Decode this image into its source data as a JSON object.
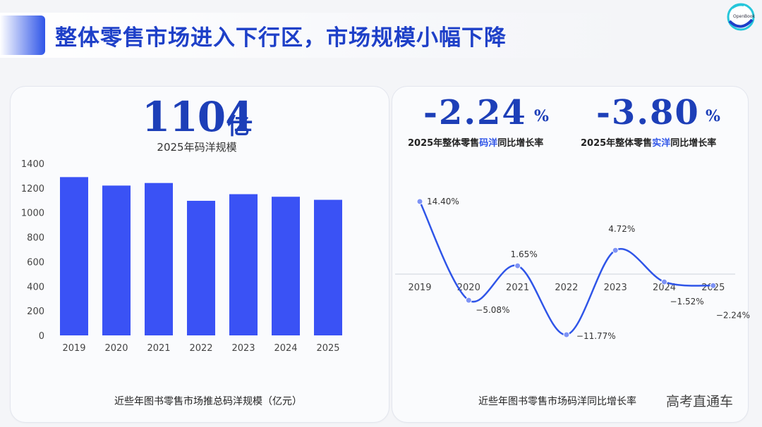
{
  "header": {
    "title": "整体零售市场进入下行区，市场规模小幅下降",
    "logo_text": "OpenBook"
  },
  "left_panel": {
    "headline_value": "1104",
    "headline_unit": "亿",
    "headline_caption": "2025年码洋规模",
    "footer_caption": "近些年图书零售市场推总码洋规模（亿元）"
  },
  "right_panel": {
    "market_rate": {
      "value": "-2.24",
      "unit": "%",
      "caption_pre": "2025年整体零售",
      "caption_hl": "码洋",
      "caption_post": "同比增长率"
    },
    "real_rate": {
      "value": "-3.80",
      "unit": "%",
      "caption_pre": "2025年整体零售",
      "caption_hl": "实洋",
      "caption_post": "同比增长率"
    },
    "footer_caption": "近些年图书零售市场码洋同比增长率"
  },
  "watermark": "高考直通车",
  "colors": {
    "accent": "#2f55e8",
    "bar": "#3a52f5",
    "headline": "#1d3fb8"
  },
  "chart_data": [
    {
      "type": "bar",
      "categories": [
        "2019",
        "2020",
        "2021",
        "2022",
        "2023",
        "2024",
        "2025"
      ],
      "values": [
        1289,
        1220,
        1241,
        1096,
        1150,
        1129,
        1104
      ],
      "title": "",
      "xlabel": "",
      "ylabel": "",
      "ylim": [
        0,
        1400
      ],
      "yticks": [
        "0",
        "200",
        "400",
        "600",
        "800",
        "1000",
        "1200",
        "1400"
      ],
      "grid": false
    },
    {
      "type": "line",
      "categories": [
        "2019",
        "2020",
        "2021",
        "2022",
        "2023",
        "2024",
        "2025"
      ],
      "values": [
        14.4,
        -5.08,
        1.65,
        -11.77,
        4.72,
        -1.52,
        -2.24
      ],
      "labels": [
        "14.40%",
        "−5.08%",
        "1.65%",
        "−11.77%",
        "4.72%",
        "−1.52%",
        "−2.24%"
      ],
      "title": "",
      "ylim": [
        -11.77,
        14.4
      ],
      "smooth": true,
      "y_axis_visible": false
    }
  ]
}
